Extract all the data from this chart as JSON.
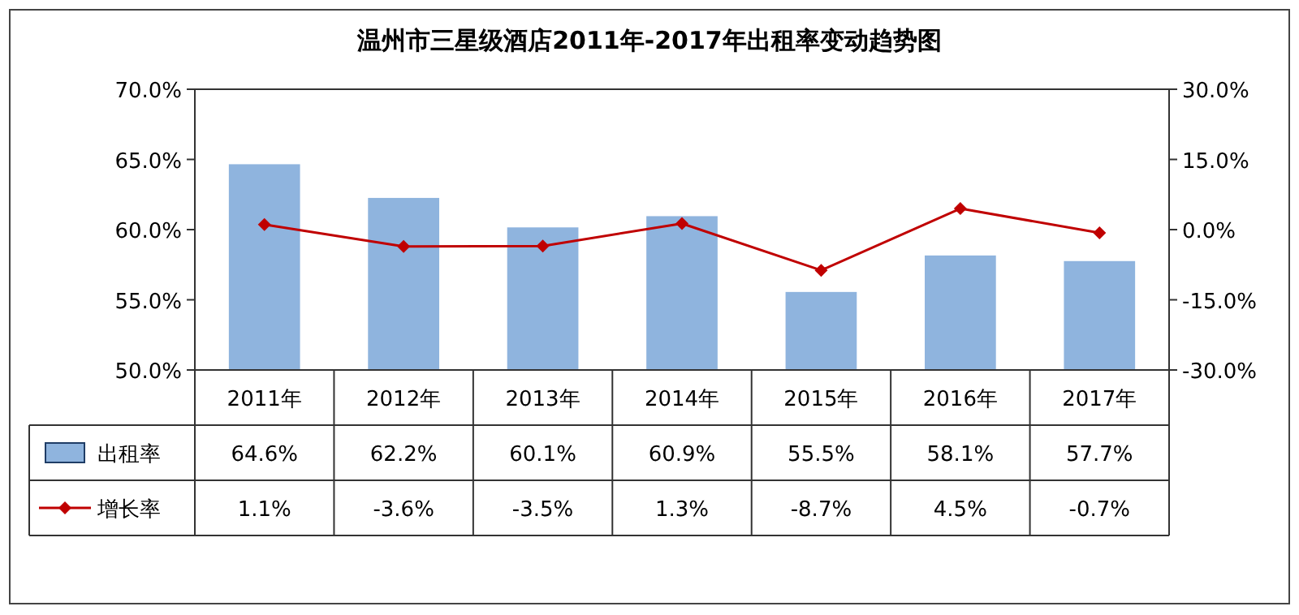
{
  "chart_data": {
    "type": "bar",
    "title": "温州市三星级酒店2011年-2017年出租率变动趋势图",
    "categories": [
      "2011年",
      "2012年",
      "2013年",
      "2014年",
      "2015年",
      "2016年",
      "2017年"
    ],
    "series": [
      {
        "name": "出租率",
        "color": "#8fb4de",
        "values": [
          64.6,
          62.2,
          60.1,
          60.9,
          55.5,
          58.1,
          57.7
        ],
        "value_labels": [
          "64.6%",
          "62.2%",
          "60.1%",
          "60.9%",
          "55.5%",
          "58.1%",
          "57.7%"
        ]
      },
      {
        "name": "增长率",
        "type": "line",
        "axis": "y2",
        "color": "#c00000",
        "marker": "diamond",
        "values": [
          1.1,
          -3.6,
          -3.5,
          1.3,
          -8.7,
          4.5,
          -0.7
        ],
        "value_labels": [
          "1.1%",
          "-3.6%",
          "-3.5%",
          "1.3%",
          "-8.7%",
          "4.5%",
          "-0.7%"
        ]
      }
    ],
    "ylim": [
      50,
      70
    ],
    "yticks": [
      {
        "value": 50,
        "label": "50.0%"
      },
      {
        "value": 55,
        "label": "55.0%"
      },
      {
        "value": 60,
        "label": "60.0%"
      },
      {
        "value": 65,
        "label": "65.0%"
      },
      {
        "value": 70,
        "label": "70.0%"
      }
    ],
    "y2lim": [
      -30,
      30
    ],
    "y2ticks": [
      {
        "value": -30,
        "label": "-30.0%"
      },
      {
        "value": -15,
        "label": "-15.0%"
      },
      {
        "value": 0,
        "label": "0.0%"
      },
      {
        "value": 15,
        "label": "15.0%"
      },
      {
        "value": 30,
        "label": "30.0%"
      }
    ],
    "legend": "bottom left"
  }
}
